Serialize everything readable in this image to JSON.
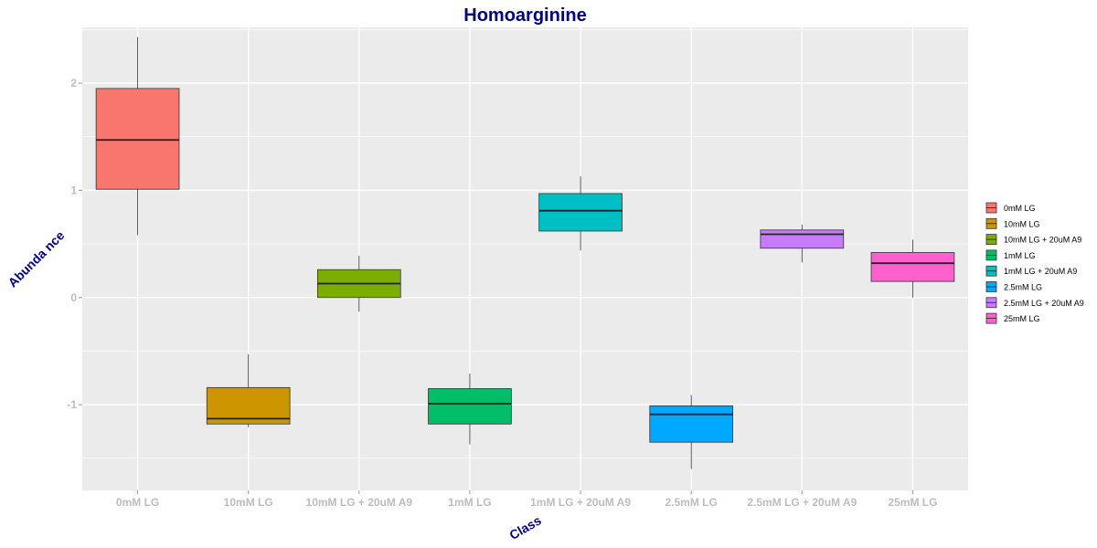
{
  "chart_data": {
    "type": "box",
    "title": "Homoarginine",
    "xlabel": "Class",
    "ylabel": "Abundance",
    "ylabel_display": "Abunda nce",
    "ylim": [
      -1.8,
      2.52
    ],
    "yticks": [
      -1,
      0,
      1,
      2
    ],
    "ytick_labels": [
      "-1",
      "0",
      "1",
      "2"
    ],
    "grid": true,
    "legend_position": "right",
    "categories": [
      "0mM LG",
      "10mM LG",
      "10mM LG + 20uM A9",
      "1mM LG",
      "1mM LG + 20uM A9",
      "2.5mM LG",
      "2.5mM LG + 20uM A9",
      "25mM LG"
    ],
    "colors": [
      "#F8766D",
      "#CD9600",
      "#7CAE00",
      "#00BE67",
      "#00BFC4",
      "#00A9FF",
      "#C77CFF",
      "#FF61CC"
    ],
    "boxes": [
      {
        "name": "0mM LG",
        "min": 0.58,
        "q1": 1.01,
        "median": 1.47,
        "q3": 1.95,
        "max": 2.43
      },
      {
        "name": "10mM LG",
        "min": -1.21,
        "q1": -1.18,
        "median": -1.13,
        "q3": -0.84,
        "max": -0.53
      },
      {
        "name": "10mM LG + 20uM A9",
        "min": -0.13,
        "q1": 0.0,
        "median": 0.13,
        "q3": 0.26,
        "max": 0.39
      },
      {
        "name": "1mM LG",
        "min": -1.37,
        "q1": -1.18,
        "median": -0.99,
        "q3": -0.85,
        "max": -0.71
      },
      {
        "name": "1mM LG + 20uM A9",
        "min": 0.44,
        "q1": 0.62,
        "median": 0.81,
        "q3": 0.97,
        "max": 1.13
      },
      {
        "name": "2.5mM LG",
        "min": -1.6,
        "q1": -1.35,
        "median": -1.09,
        "q3": -1.01,
        "max": -0.91
      },
      {
        "name": "2.5mM LG + 20uM A9",
        "min": 0.33,
        "q1": 0.46,
        "median": 0.59,
        "q3": 0.63,
        "max": 0.68
      },
      {
        "name": "25mM LG",
        "min": 0.0,
        "q1": 0.15,
        "median": 0.32,
        "q3": 0.42,
        "max": 0.54
      }
    ],
    "legend": [
      "0mM LG",
      "10mM LG",
      "10mM LG + 20uM A9",
      "1mM LG",
      "1mM LG + 20uM A9",
      "2.5mM LG",
      "2.5mM LG + 20uM A9",
      "25mM LG"
    ],
    "panel_background": "#EBEBEB",
    "grid_color": "#FFFFFF",
    "tick_color": "#BDBDBD",
    "title_color": "#000080"
  }
}
